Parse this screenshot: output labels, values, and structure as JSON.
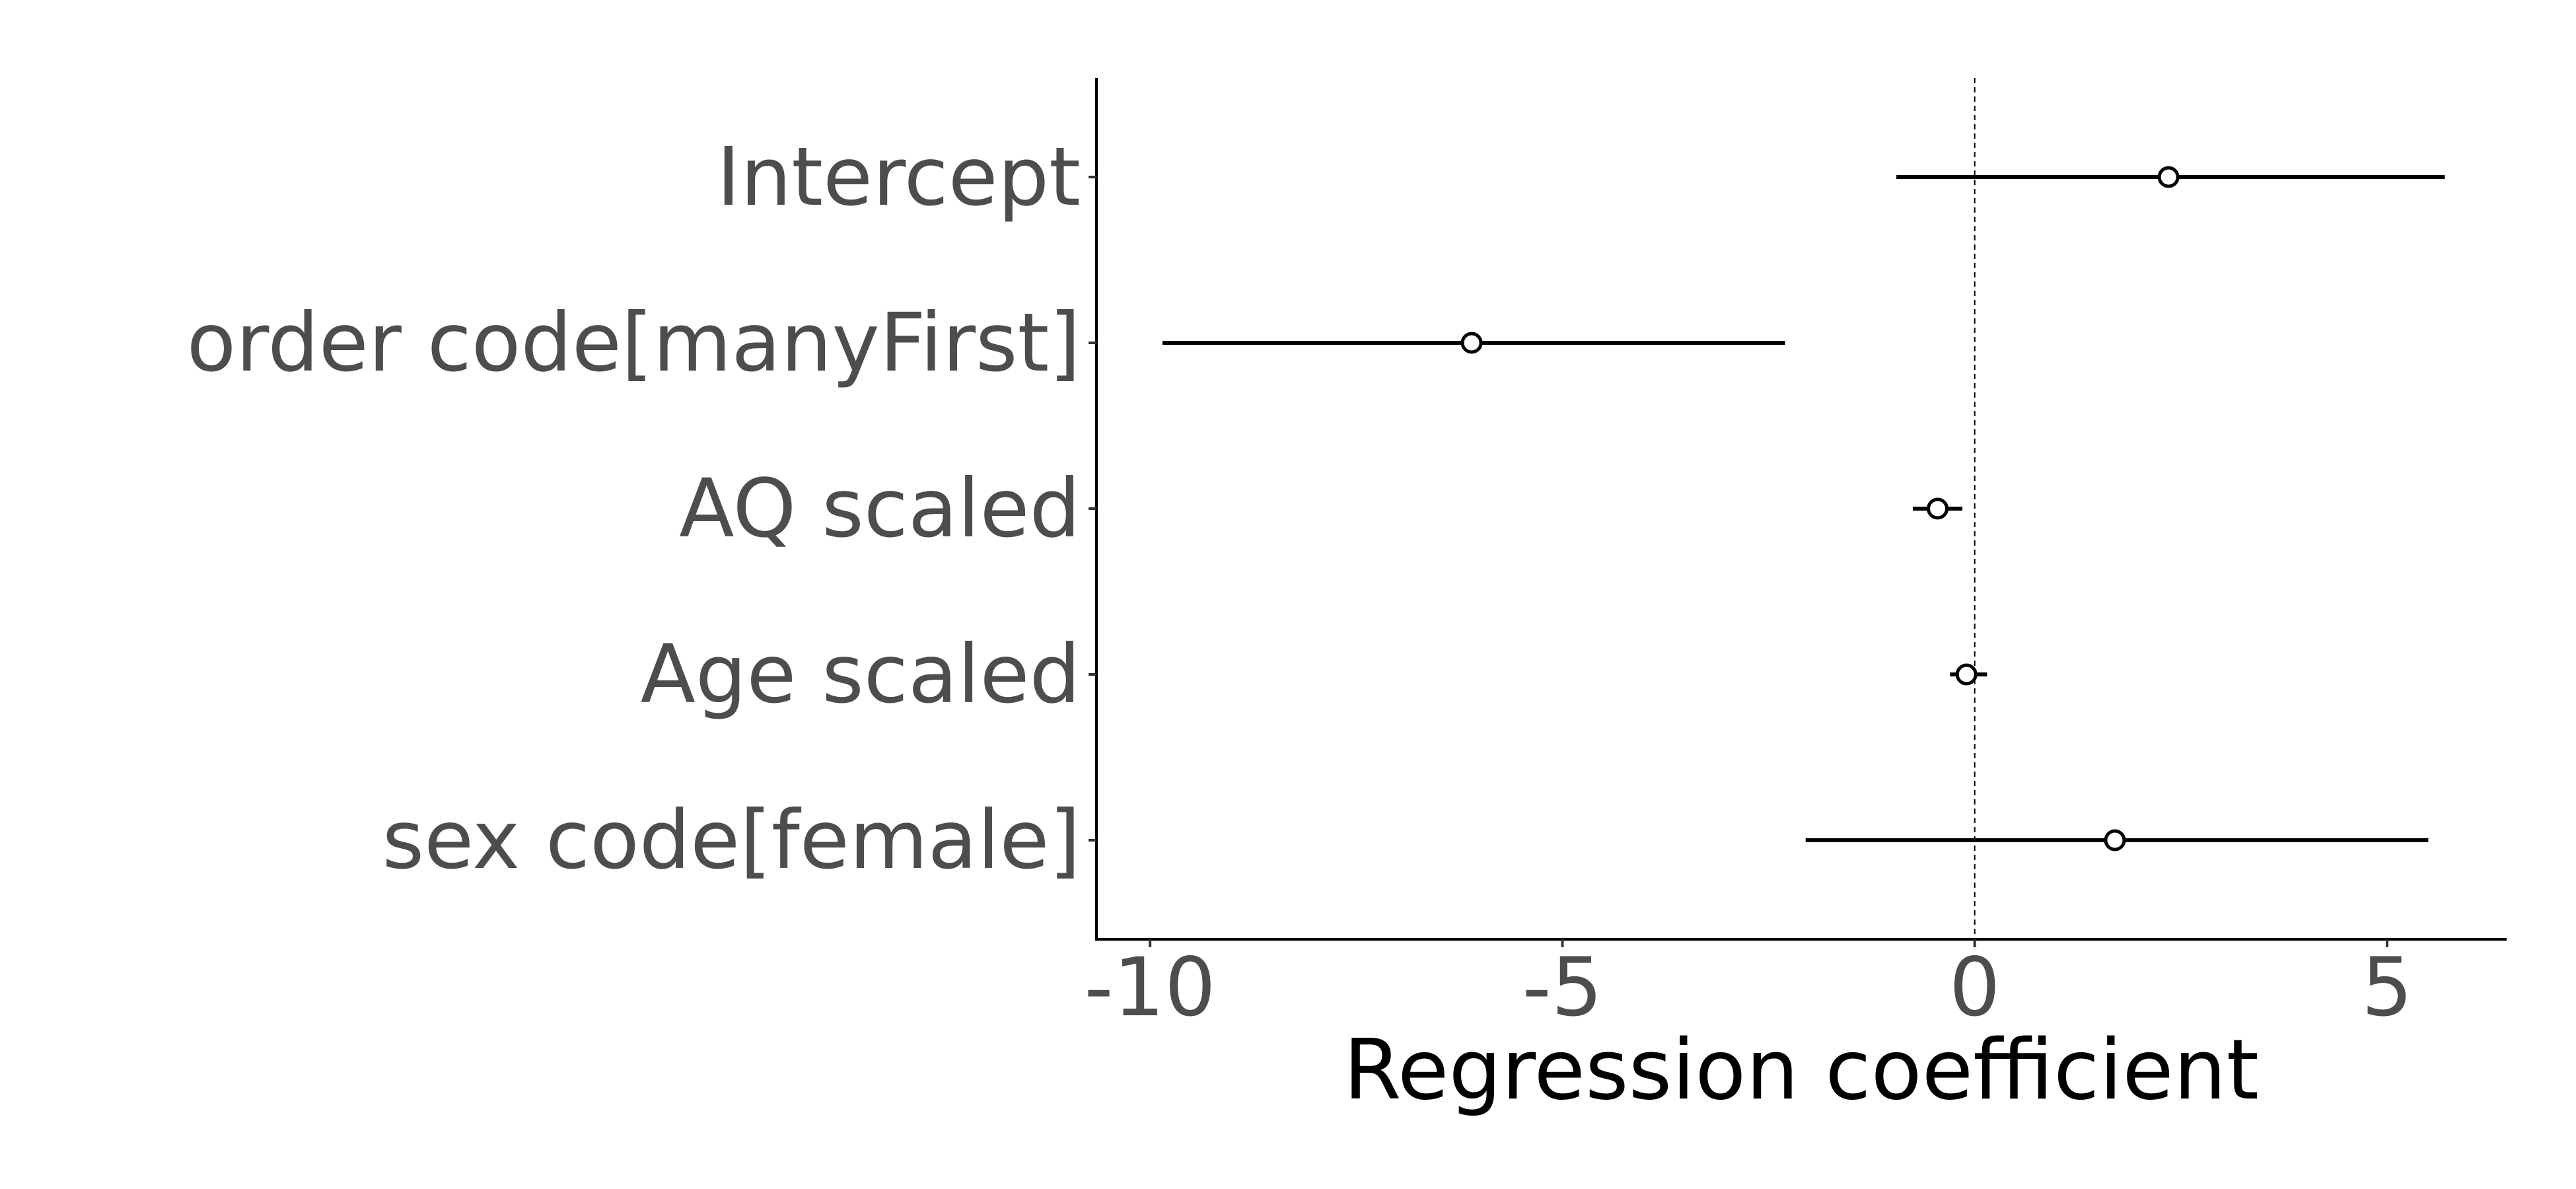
{
  "chart_data": {
    "type": "forest",
    "title": "",
    "xlabel": "Regression coefficient",
    "ylabel": "",
    "xlim": [
      -10.65,
      6.45
    ],
    "xticks": [
      -10,
      -5,
      0,
      5
    ],
    "xtick_labels": [
      "-10",
      "-5",
      "0",
      "5"
    ],
    "reference_line": 0,
    "grid": false,
    "rows": [
      {
        "label": "Intercept",
        "estimate": 2.35,
        "lower": -0.95,
        "upper": 5.7
      },
      {
        "label": "order code[manyFirst]",
        "estimate": -6.1,
        "lower": -9.85,
        "upper": -2.3
      },
      {
        "label": "AQ scaled",
        "estimate": -0.45,
        "lower": -0.75,
        "upper": -0.15
      },
      {
        "label": "Age scaled",
        "estimate": -0.1,
        "lower": -0.3,
        "upper": 0.15
      },
      {
        "label": "sex code[female]",
        "estimate": 1.7,
        "lower": -2.05,
        "upper": 5.5
      }
    ],
    "colors": {
      "point_fill": "#ffffff",
      "line": "#000000",
      "text": "#4d4d4d"
    }
  }
}
